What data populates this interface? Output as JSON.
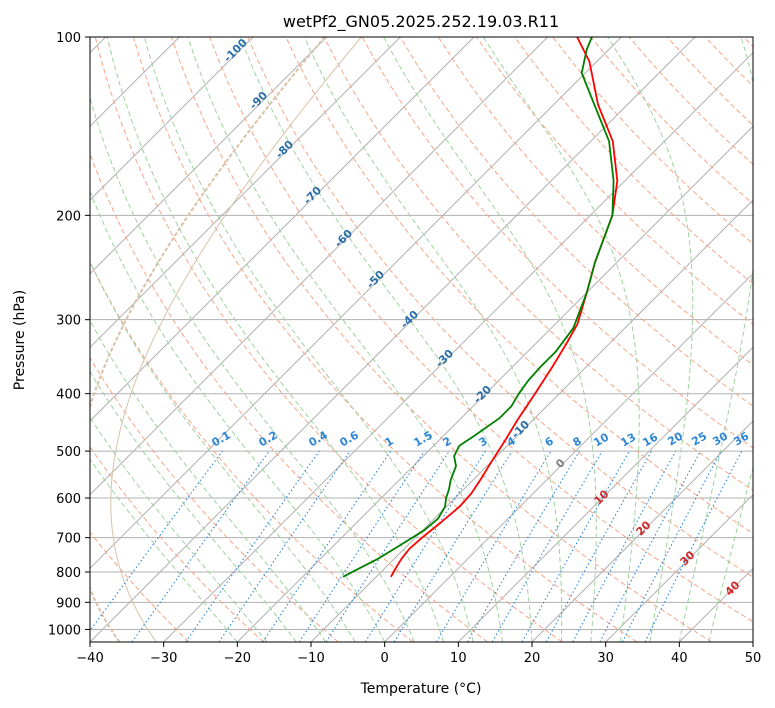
{
  "chart_data": {
    "type": "line",
    "title": "wetPf2_GN05.2025.252.19.03.R11",
    "xlabel": "Temperature (°C)",
    "ylabel": "Pressure (hPa)",
    "xlim": [
      -40,
      50
    ],
    "ylim": [
      1050,
      100
    ],
    "y_scale": "log",
    "x_ticks": [
      -40,
      -30,
      -20,
      -10,
      0,
      10,
      20,
      30,
      40,
      50
    ],
    "y_ticks": [
      100,
      200,
      300,
      400,
      500,
      600,
      700,
      800,
      900,
      1000
    ],
    "grid": true,
    "skew": true,
    "series": [
      {
        "color": "#ff0000",
        "values": [
          [
            -8,
            815
          ],
          [
            -8.5,
            790
          ],
          [
            -9,
            760
          ],
          [
            -9.3,
            730
          ],
          [
            -9.1,
            700
          ],
          [
            -8.6,
            660
          ],
          [
            -8.2,
            620
          ],
          [
            -8.4,
            590
          ],
          [
            -9,
            560
          ],
          [
            -10,
            520
          ],
          [
            -11,
            480
          ],
          [
            -12.2,
            440
          ],
          [
            -13.3,
            400
          ],
          [
            -14.6,
            360
          ],
          [
            -15.8,
            330
          ],
          [
            -17,
            305
          ],
          [
            -20,
            270
          ],
          [
            -23,
            240
          ],
          [
            -27,
            200
          ],
          [
            -31,
            175
          ],
          [
            -37,
            150
          ],
          [
            -44,
            130
          ],
          [
            -51,
            110
          ],
          [
            -56,
            100
          ]
        ]
      },
      {
        "color": "#008000",
        "values": [
          [
            -14.5,
            815
          ],
          [
            -13.5,
            790
          ],
          [
            -12.2,
            760
          ],
          [
            -11,
            720
          ],
          [
            -9.8,
            680
          ],
          [
            -9.5,
            650
          ],
          [
            -10.2,
            620
          ],
          [
            -11.2,
            600
          ],
          [
            -12,
            580
          ],
          [
            -13,
            560
          ],
          [
            -14.2,
            530
          ],
          [
            -15.8,
            510
          ],
          [
            -16.5,
            490
          ],
          [
            -15.8,
            470
          ],
          [
            -14.8,
            440
          ],
          [
            -14.8,
            420
          ],
          [
            -15.5,
            400
          ],
          [
            -16,
            380
          ],
          [
            -16.2,
            360
          ],
          [
            -16.2,
            340
          ],
          [
            -17,
            310
          ],
          [
            -20,
            270
          ],
          [
            -23,
            240
          ],
          [
            -27,
            200
          ],
          [
            -31.5,
            175
          ],
          [
            -37.5,
            150
          ],
          [
            -44.5,
            130
          ],
          [
            -50.5,
            115
          ],
          [
            -53,
            105
          ],
          [
            -54,
            100
          ]
        ]
      }
    ],
    "dry_adiabat_labels": [
      "-100",
      "-90",
      "-80",
      "-70",
      "-60",
      "-50",
      "-40",
      "-30",
      "-20",
      "-10"
    ],
    "moist_adiabat_labels": [
      "0",
      "10",
      "20",
      "30",
      "40"
    ],
    "mixing_ratio_labels": [
      "0.1",
      "0.2",
      "0.4",
      "0.6",
      "1",
      "1.5",
      "2",
      "3",
      "4",
      "6",
      "8",
      "10",
      "13",
      "16",
      "20",
      "25",
      "30",
      "36"
    ],
    "colors": {
      "isotherm": "#b0b0b0",
      "isobar": "#b0b0b0",
      "dry_adiabat": "#f7a588",
      "moist_adiabat": "#9fd19f",
      "mixing_ratio": "#2c87d8",
      "dry_adiabat_label": "#2a6fa8",
      "moist_adiabat_label": "#cc2a2a",
      "mixing_ratio_label": "#2c87d8",
      "ccl_curve": "#d9c2a8"
    }
  }
}
